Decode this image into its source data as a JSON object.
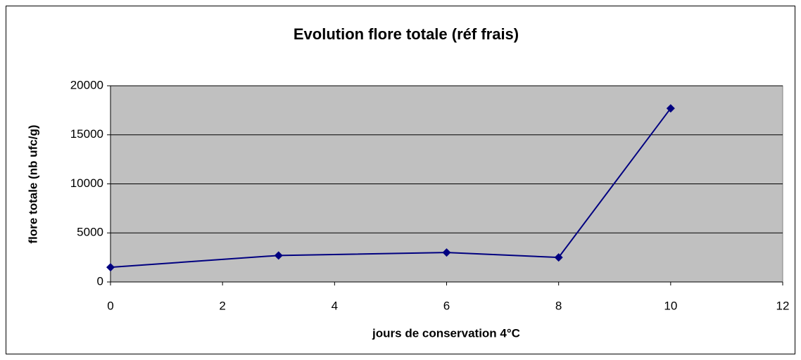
{
  "chart_data": {
    "type": "line",
    "title": "Evolution flore totale (réf frais)",
    "xlabel": "jours de conservation 4°C",
    "ylabel": "flore totale (nb ufc/g)",
    "x": [
      0,
      3,
      6,
      8,
      10
    ],
    "series": [
      {
        "name": "flore totale",
        "color": "#000080",
        "values": [
          1500,
          2700,
          3000,
          2500,
          17700
        ]
      }
    ],
    "xlim": [
      0,
      12
    ],
    "xticks": [
      0,
      2,
      4,
      6,
      8,
      10,
      12
    ],
    "ylim": [
      0,
      20000
    ],
    "yticks": [
      0,
      5000,
      10000,
      15000,
      20000
    ],
    "grid": true,
    "plot_background": "#c0c0c0"
  }
}
